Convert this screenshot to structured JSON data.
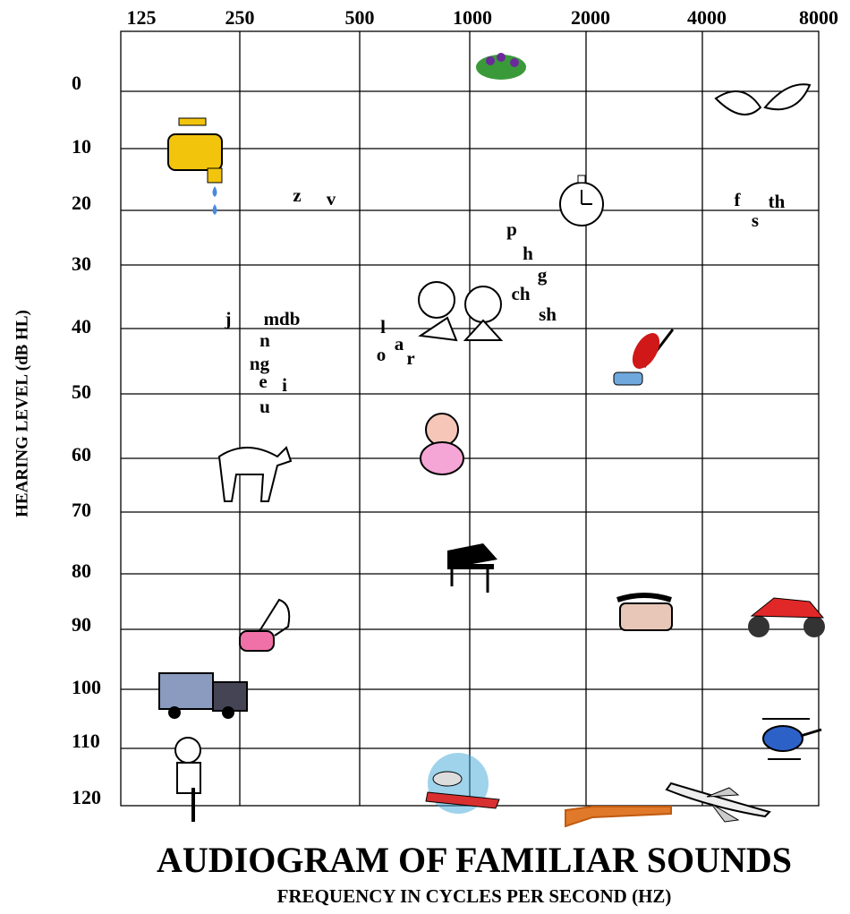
{
  "title": "AUDIOGRAM OF FAMILIAR SOUNDS",
  "x_axis": {
    "label": "FREQUENCY IN CYCLES PER SECOND (HZ)",
    "ticks": [
      "125",
      "250",
      "500",
      "1000",
      "2000",
      "4000",
      "8000"
    ]
  },
  "y_axis": {
    "label": "HEARING LEVEL (dB HL)",
    "ticks": [
      "0",
      "10",
      "20",
      "30",
      "40",
      "50",
      "60",
      "70",
      "80",
      "90",
      "100",
      "110",
      "120"
    ]
  },
  "speech_sounds": [
    "z",
    "v",
    "f",
    "th",
    "s",
    "p",
    "h",
    "g",
    "ch",
    "sh",
    "j",
    "mdb",
    "l",
    "a",
    "o",
    "r",
    "n",
    "ng",
    "e",
    "i",
    "u"
  ]
}
